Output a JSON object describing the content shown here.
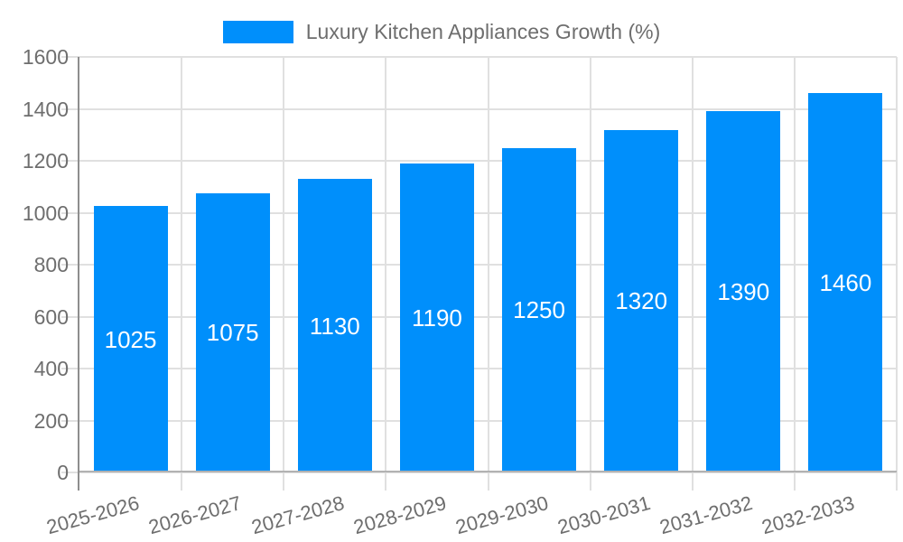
{
  "chart_data": {
    "type": "bar",
    "title": "Luxury Kitchen Appliances Growth (%)",
    "legend": {
      "label": "Luxury Kitchen Appliances Growth (%)",
      "position": "top"
    },
    "categories": [
      "2025-2026",
      "2026-2027",
      "2027-2028",
      "2028-2029",
      "2029-2030",
      "2030-2031",
      "2031-2032",
      "2032-2033"
    ],
    "series": [
      {
        "name": "Luxury Kitchen Appliances Growth (%)",
        "values": [
          1025,
          1075,
          1130,
          1190,
          1250,
          1320,
          1390,
          1460
        ]
      }
    ],
    "bar_value_labels": [
      "1025",
      "1075",
      "1130",
      "1190",
      "1250",
      "1320",
      "1390",
      "1460"
    ],
    "xlabel": "",
    "ylabel": "",
    "ylim": [
      0,
      1600
    ],
    "yticks": [
      0,
      200,
      400,
      600,
      800,
      1000,
      1200,
      1400,
      1600
    ],
    "grid": true,
    "colors": {
      "bar": "#008ffb",
      "bar_value_text": "#ffffff",
      "axis_text": "#6e6e6e",
      "legend_text": "#6e6e6e",
      "gridline": "#e0e0e0",
      "y_axis_line": "#8e8e8e",
      "x_axis_line": "#b2b2b2",
      "background": "#ffffff"
    }
  }
}
